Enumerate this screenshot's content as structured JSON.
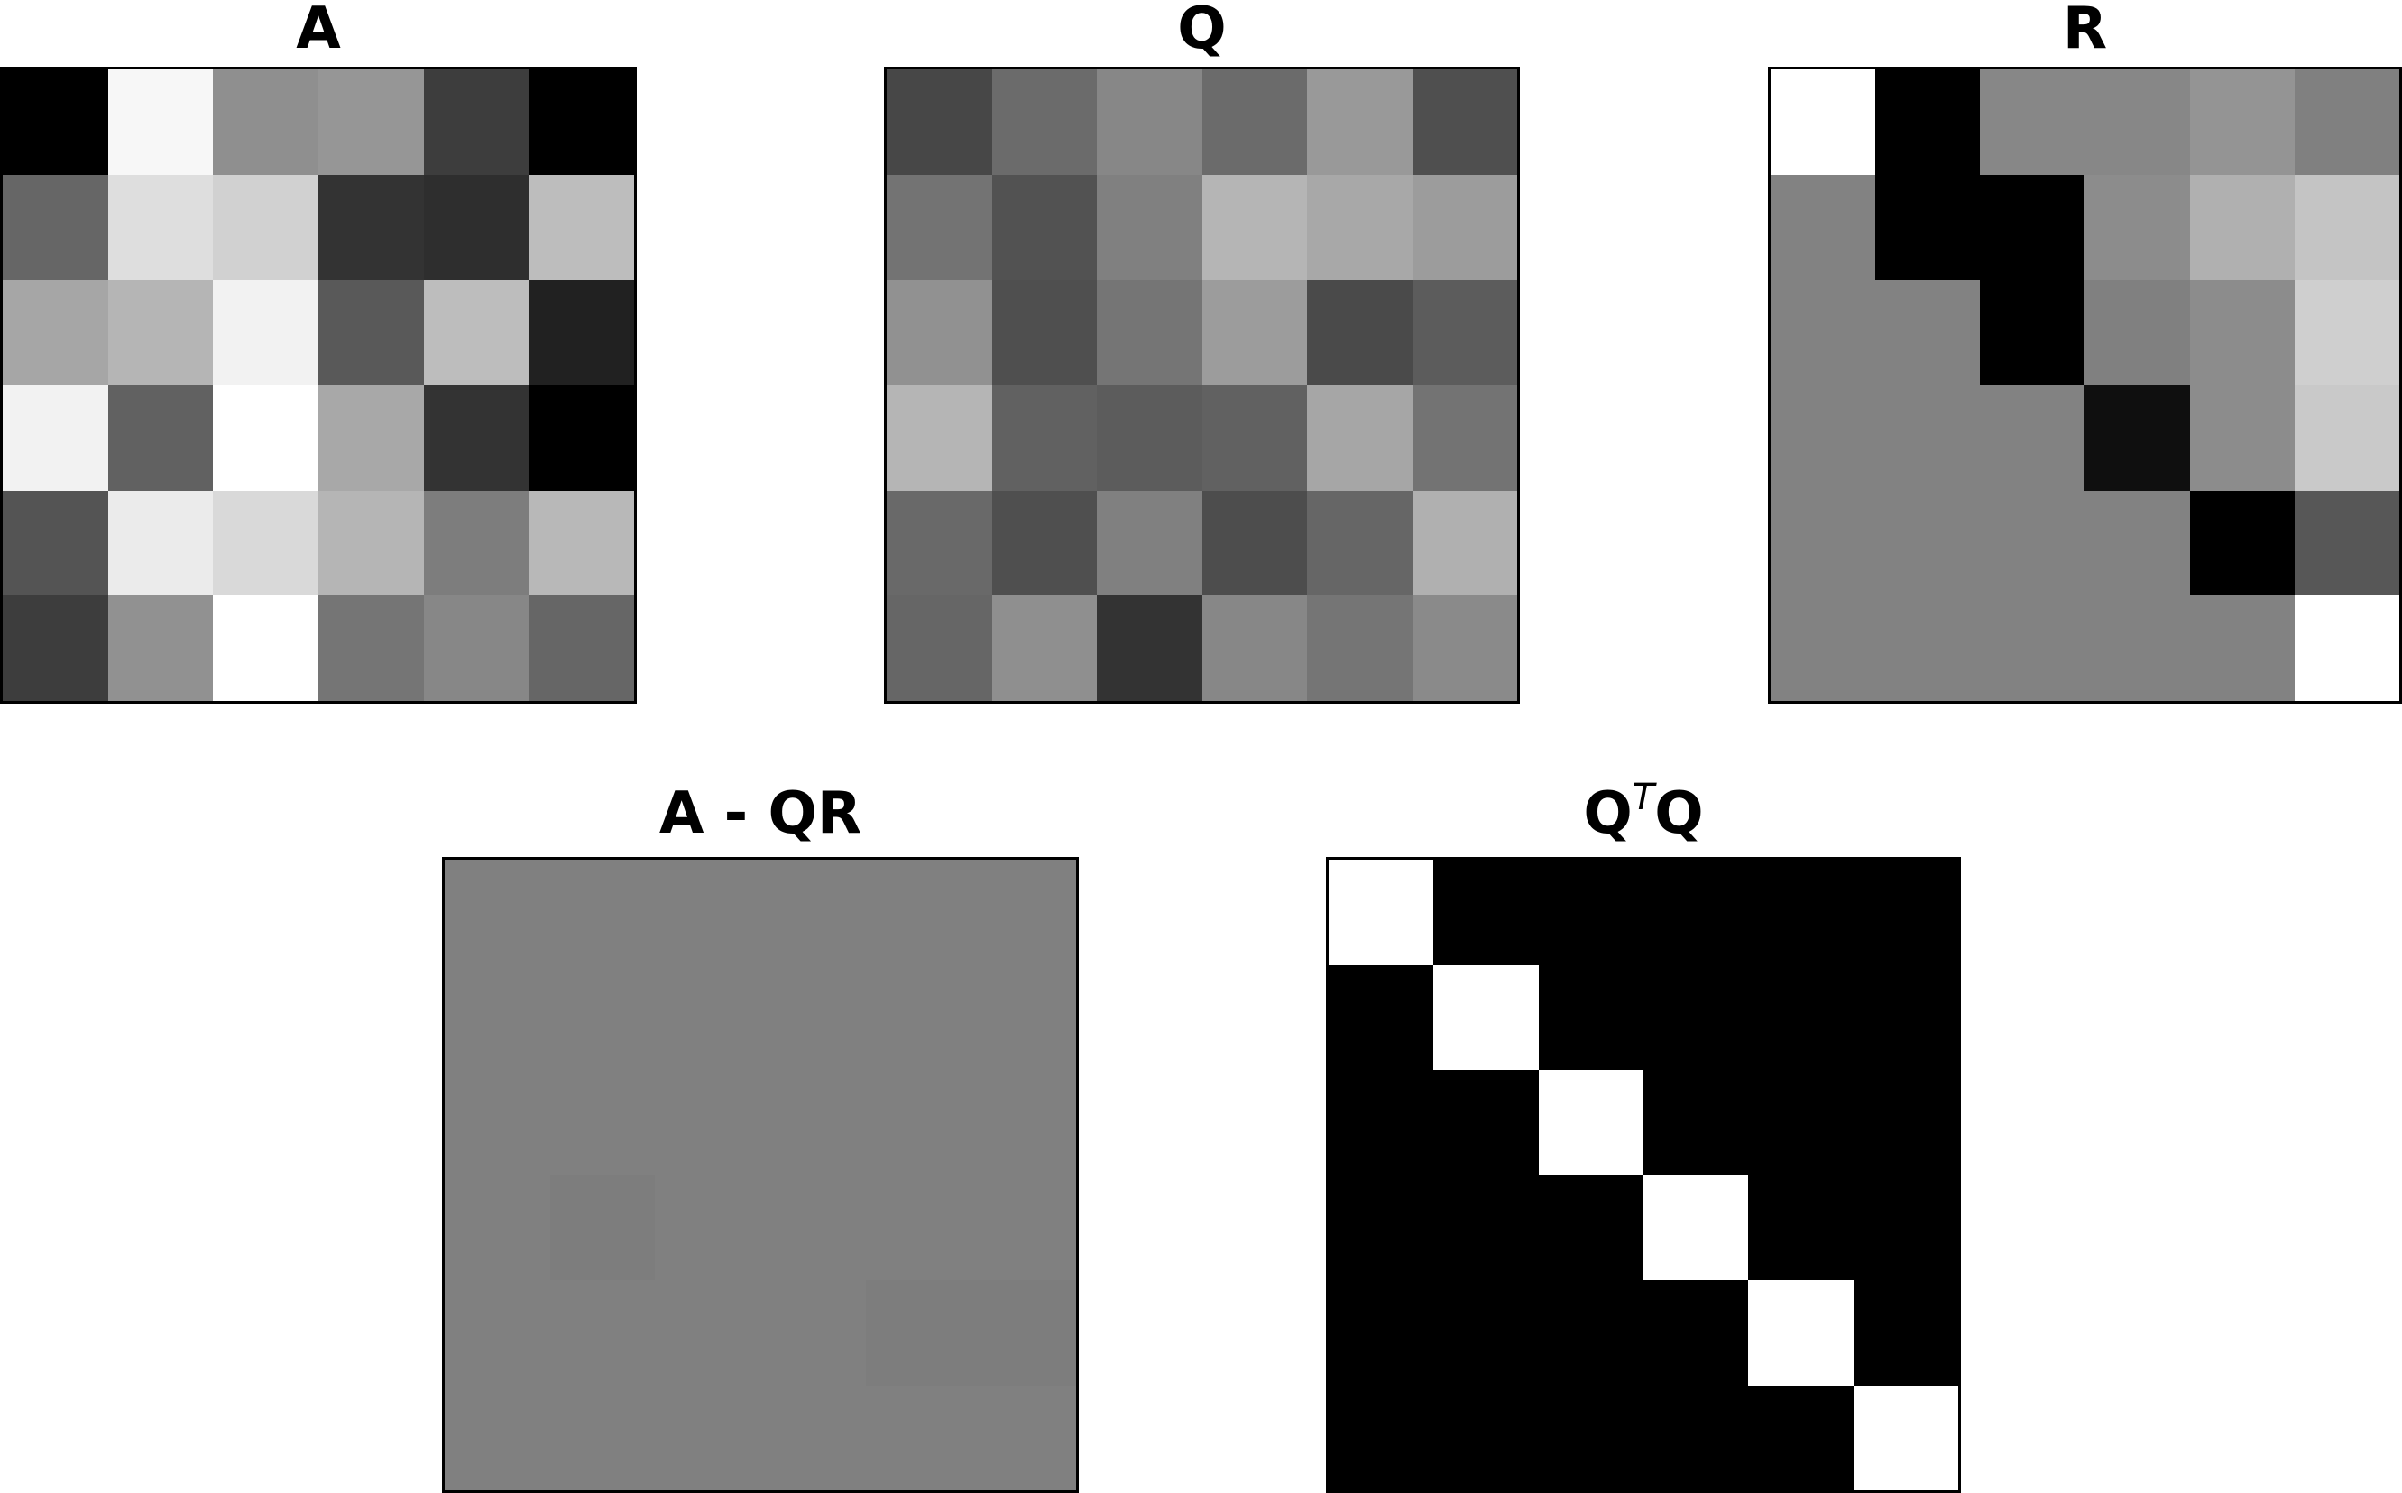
{
  "chart_data": [
    {
      "type": "heatmap",
      "title": "A",
      "rows": 6,
      "cols": 6,
      "colormap": "gray",
      "values": [
        [
          0.0,
          0.97,
          0.56,
          0.59,
          0.24,
          0.0
        ],
        [
          0.4,
          0.87,
          0.82,
          0.2,
          0.18,
          0.74
        ],
        [
          0.65,
          0.71,
          0.95,
          0.35,
          0.74,
          0.13
        ],
        [
          0.95,
          0.38,
          1.0,
          0.66,
          0.2,
          0.0
        ],
        [
          0.33,
          0.92,
          0.85,
          0.71,
          0.49,
          0.72
        ],
        [
          0.24,
          0.57,
          1.0,
          0.46,
          0.53,
          0.4
        ]
      ]
    },
    {
      "type": "heatmap",
      "title": "Q",
      "rows": 6,
      "cols": 6,
      "colormap": "gray",
      "values": [
        [
          0.28,
          0.42,
          0.53,
          0.42,
          0.6,
          0.31
        ],
        [
          0.45,
          0.32,
          0.5,
          0.71,
          0.66,
          0.61
        ],
        [
          0.57,
          0.31,
          0.46,
          0.61,
          0.29,
          0.36
        ],
        [
          0.71,
          0.38,
          0.36,
          0.38,
          0.65,
          0.45
        ],
        [
          0.41,
          0.31,
          0.5,
          0.3,
          0.4,
          0.69
        ],
        [
          0.4,
          0.56,
          0.2,
          0.53,
          0.46,
          0.54
        ]
      ]
    },
    {
      "type": "heatmap",
      "title": "R",
      "rows": 6,
      "cols": 6,
      "colormap": "gray",
      "values": [
        [
          1.0,
          0.0,
          0.53,
          0.53,
          0.58,
          0.5
        ],
        [
          0.51,
          0.0,
          0.0,
          0.55,
          0.69,
          0.77
        ],
        [
          0.51,
          0.51,
          0.0,
          0.5,
          0.55,
          0.81
        ],
        [
          0.51,
          0.51,
          0.51,
          0.06,
          0.55,
          0.79
        ],
        [
          0.51,
          0.51,
          0.51,
          0.51,
          0.0,
          0.34
        ],
        [
          0.51,
          0.51,
          0.51,
          0.51,
          0.51,
          1.0
        ]
      ]
    },
    {
      "type": "heatmap",
      "title": "A - QR",
      "rows": 6,
      "cols": 6,
      "colormap": "gray",
      "values": [
        [
          0.5,
          0.5,
          0.5,
          0.5,
          0.5,
          0.5
        ],
        [
          0.5,
          0.5,
          0.5,
          0.5,
          0.5,
          0.5
        ],
        [
          0.5,
          0.5,
          0.5,
          0.5,
          0.5,
          0.5
        ],
        [
          0.5,
          0.49,
          0.5,
          0.5,
          0.5,
          0.5
        ],
        [
          0.5,
          0.5,
          0.5,
          0.5,
          0.49,
          0.49
        ],
        [
          0.5,
          0.5,
          0.5,
          0.5,
          0.5,
          0.5
        ]
      ]
    },
    {
      "type": "heatmap",
      "title_main": "Q",
      "title_sup": "T",
      "title_tail": "Q",
      "rows": 6,
      "cols": 6,
      "colormap": "gray",
      "values": [
        [
          1,
          0,
          0,
          0,
          0,
          0
        ],
        [
          0,
          1,
          0,
          0,
          0,
          0
        ],
        [
          0,
          0,
          1,
          0,
          0,
          0
        ],
        [
          0,
          0,
          0,
          1,
          0,
          0
        ],
        [
          0,
          0,
          0,
          0,
          1,
          0
        ],
        [
          0,
          0,
          0,
          0,
          0,
          1
        ]
      ]
    }
  ]
}
